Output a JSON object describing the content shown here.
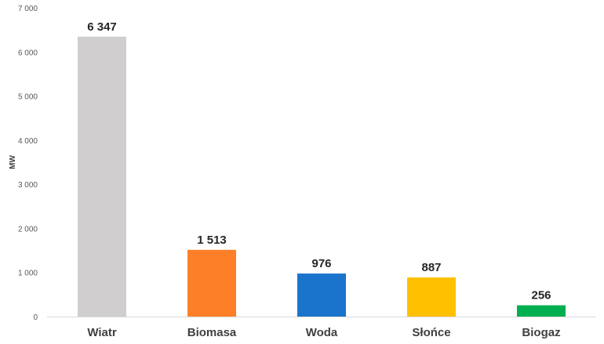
{
  "chart_data": {
    "type": "bar",
    "ylabel": "MW",
    "ylim": [
      0,
      7000
    ],
    "yticks": [
      0,
      1000,
      2000,
      3000,
      4000,
      5000,
      6000,
      7000
    ],
    "ytick_labels": [
      "0",
      "1 000",
      "2 000",
      "3 000",
      "4 000",
      "5 000",
      "6 000",
      "7 000"
    ],
    "categories": [
      "Wiatr",
      "Biomasa",
      "Woda",
      "Słońce",
      "Biogaz"
    ],
    "values": [
      6347,
      1513,
      976,
      887,
      256
    ],
    "data_labels": [
      "6 347",
      "1 513",
      "976",
      "887",
      "256"
    ],
    "colors": [
      "#d0cece",
      "#fd7f28",
      "#1a74cb",
      "#ffc000",
      "#00b050"
    ],
    "grid": false,
    "legend": "none"
  }
}
